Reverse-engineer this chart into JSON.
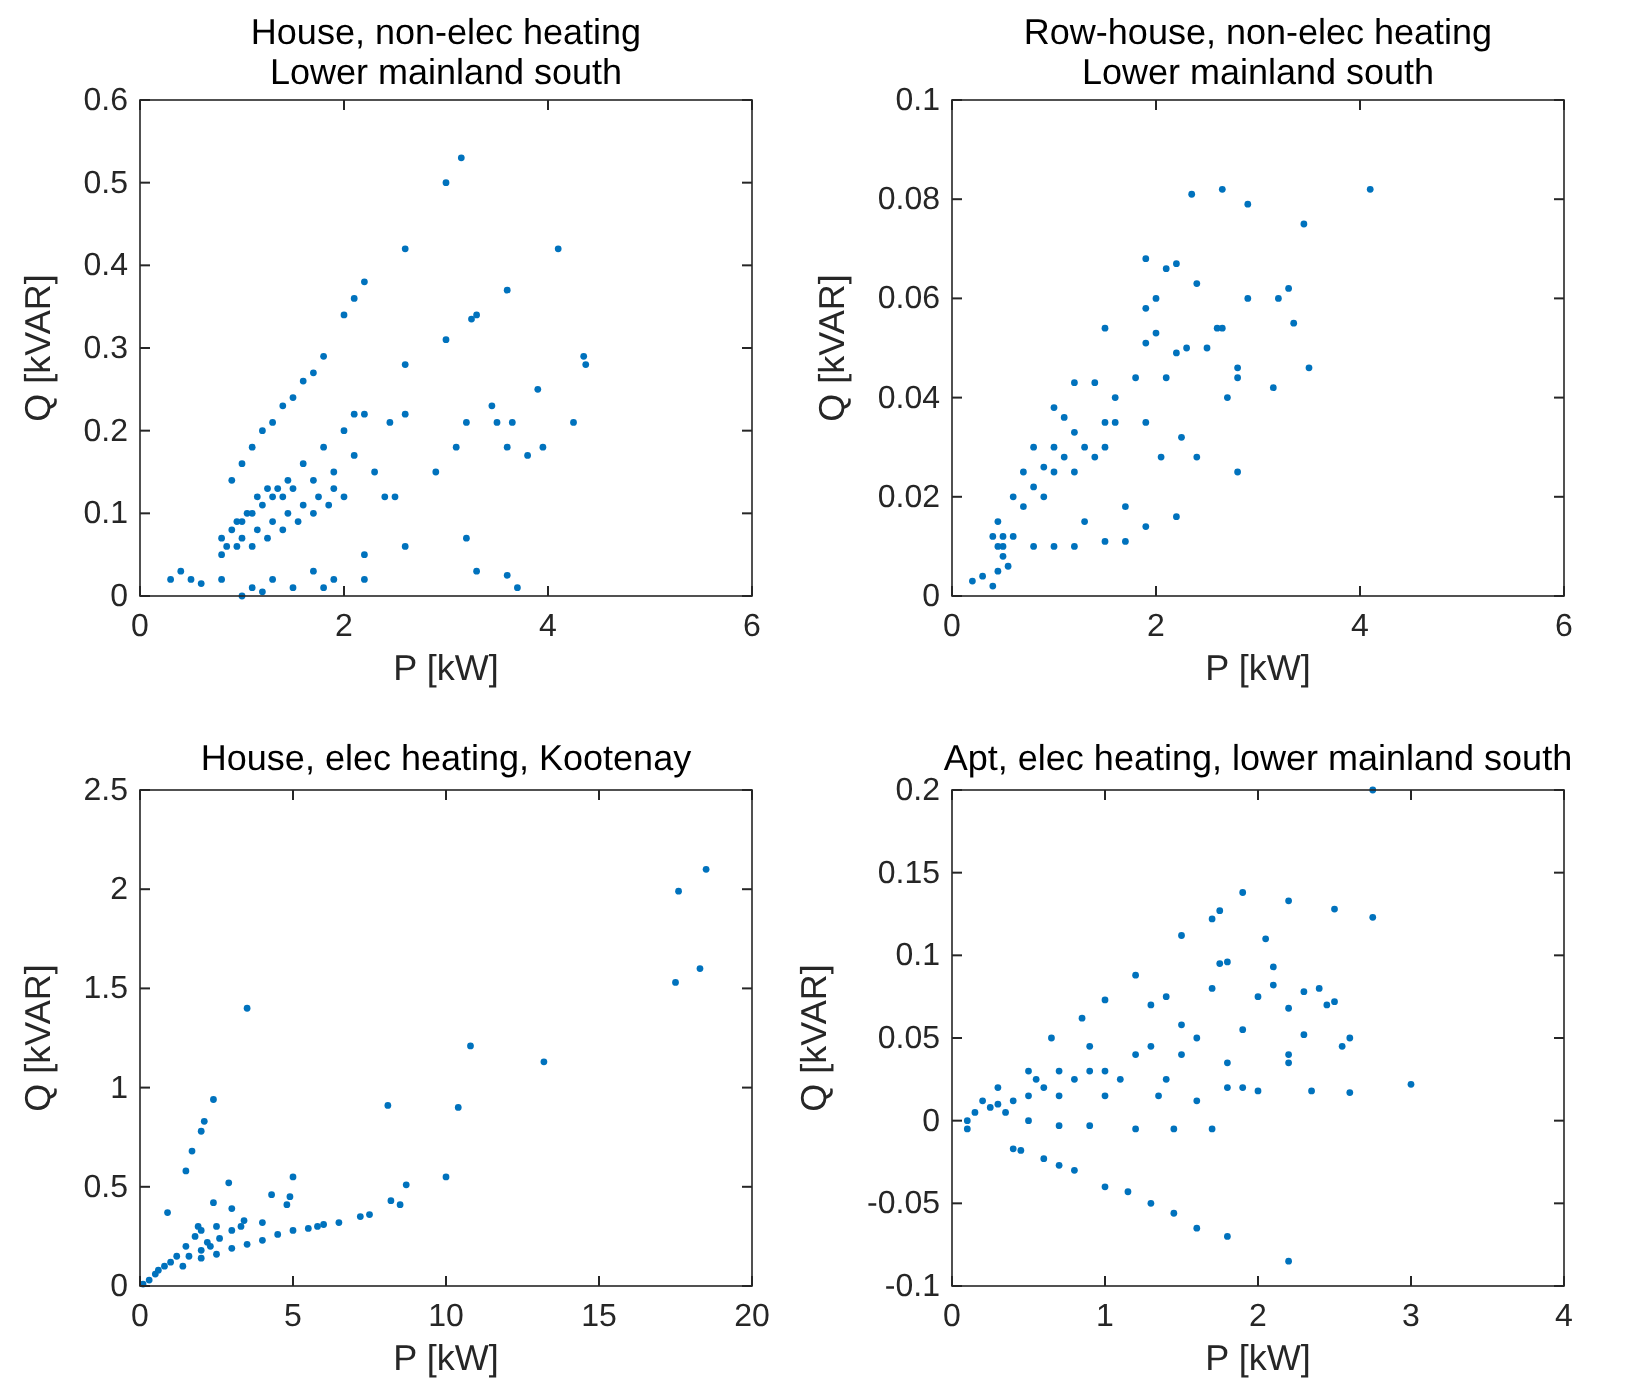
{
  "chart_data": [
    {
      "type": "scatter",
      "title": "House, non-elec heating",
      "subtitle": "Lower mainland south",
      "xlabel": "P [kW]",
      "ylabel": "Q [kVAR]",
      "xlim": [
        0,
        6
      ],
      "ylim": [
        0,
        0.6
      ],
      "xticks": [
        0,
        2,
        4,
        6
      ],
      "yticks": [
        0,
        0.1,
        0.2,
        0.3,
        0.4,
        0.5,
        0.6
      ],
      "marker": "circle",
      "grid": false,
      "series": [
        {
          "color": "#0072bd",
          "x": [
            0.9,
            1.0,
            1.1,
            1.2,
            1.3,
            1.4,
            1.5,
            1.6,
            1.7,
            0.95,
            1.05,
            1.15,
            1.25,
            1.35,
            1.45,
            0.8,
            0.9,
            1.0,
            1.1,
            1.2,
            1.3,
            1.4,
            1.5,
            0.85,
            1.0,
            1.15,
            1.3,
            1.45,
            1.6,
            1.75,
            1.9,
            0.8,
            0.95,
            1.1,
            1.25,
            1.4,
            1.55,
            1.7,
            1.85,
            2.0,
            1.6,
            1.8,
            2.0,
            2.2,
            1.7,
            1.9,
            2.1,
            3.15,
            3.0,
            2.6,
            4.1,
            2.2,
            2.1,
            2.0,
            3.6,
            3.3,
            3.25,
            3.0,
            1.8,
            2.6,
            4.35,
            4.37,
            3.45,
            3.9,
            2.6,
            2.1,
            3.5,
            3.2,
            3.65,
            2.45,
            4.25,
            3.95,
            3.8,
            3.6,
            3.1,
            2.3,
            2.9,
            2.4,
            2.5,
            2.6,
            2.2,
            3.2,
            3.3,
            3.6,
            3.7,
            2.2,
            0.3,
            0.4,
            0.5,
            0.6,
            0.8,
            1.0,
            1.1,
            1.2,
            1.3,
            1.5,
            1.7,
            1.8,
            1.9
          ],
          "values": [
            0.14,
            0.16,
            0.18,
            0.2,
            0.21,
            0.23,
            0.24,
            0.26,
            0.27,
            0.09,
            0.1,
            0.12,
            0.13,
            0.13,
            0.14,
            0.07,
            0.08,
            0.09,
            0.1,
            0.11,
            0.12,
            0.12,
            0.13,
            0.06,
            0.07,
            0.08,
            0.09,
            0.1,
            0.11,
            0.12,
            0.13,
            0.05,
            0.06,
            0.06,
            0.07,
            0.08,
            0.09,
            0.1,
            0.11,
            0.12,
            0.16,
            0.18,
            0.2,
            0.22,
            0.14,
            0.15,
            0.17,
            0.53,
            0.5,
            0.42,
            0.42,
            0.38,
            0.36,
            0.34,
            0.37,
            0.34,
            0.335,
            0.31,
            0.29,
            0.28,
            0.29,
            0.28,
            0.23,
            0.25,
            0.22,
            0.22,
            0.21,
            0.21,
            0.21,
            0.21,
            0.21,
            0.18,
            0.17,
            0.18,
            0.18,
            0.15,
            0.15,
            0.12,
            0.12,
            0.06,
            0.05,
            0.07,
            0.03,
            0.025,
            0.01,
            0.02,
            0.02,
            0.03,
            0.02,
            0.015,
            0.02,
            0.0,
            0.01,
            0.005,
            0.02,
            0.01,
            0.03,
            0.01,
            0.02
          ]
        }
      ]
    },
    {
      "type": "scatter",
      "title": "Row-house, non-elec heating",
      "subtitle": "Lower mainland south",
      "xlabel": "P [kW]",
      "ylabel": "Q [kVAR]",
      "xlim": [
        0,
        6
      ],
      "ylim": [
        0,
        0.1
      ],
      "xticks": [
        0,
        2,
        4,
        6
      ],
      "yticks": [
        0,
        0.02,
        0.04,
        0.06,
        0.08,
        0.1
      ],
      "marker": "circle",
      "grid": false,
      "series": [
        {
          "color": "#0072bd",
          "x": [
            2.35,
            2.65,
            2.9,
            3.45,
            4.1,
            1.9,
            2.1,
            2.2,
            2.0,
            2.4,
            2.9,
            3.2,
            3.3,
            3.35,
            3.5,
            3.15,
            2.8,
            1.5,
            1.9,
            2.6,
            2.65,
            1.9,
            2.3,
            2.0,
            2.2,
            2.5,
            2.7,
            2.8,
            2.1,
            1.8,
            1.2,
            1.4,
            1.6,
            1.0,
            1.1,
            1.5,
            1.9,
            2.25,
            2.05,
            2.4,
            2.8,
            2.2,
            1.9,
            1.3,
            1.5,
            1.7,
            1.0,
            1.2,
            0.8,
            0.6,
            0.5,
            0.45,
            0.4,
            0.2,
            0.3,
            0.45,
            0.5,
            0.6,
            0.7,
            0.8,
            0.9,
            1.0,
            1.1,
            1.2,
            1.3,
            1.4,
            1.5,
            1.6,
            0.7,
            0.8,
            0.9,
            1.0,
            1.2,
            0.5,
            0.45,
            0.55,
            1.7,
            0.4
          ],
          "values": [
            0.081,
            0.082,
            0.079,
            0.075,
            0.082,
            0.068,
            0.066,
            0.067,
            0.06,
            0.063,
            0.06,
            0.06,
            0.062,
            0.055,
            0.046,
            0.042,
            0.046,
            0.054,
            0.058,
            0.054,
            0.054,
            0.051,
            0.05,
            0.053,
            0.049,
            0.05,
            0.04,
            0.044,
            0.044,
            0.044,
            0.043,
            0.043,
            0.04,
            0.038,
            0.036,
            0.035,
            0.035,
            0.032,
            0.028,
            0.028,
            0.025,
            0.016,
            0.014,
            0.015,
            0.011,
            0.011,
            0.01,
            0.01,
            0.01,
            0.012,
            0.008,
            0.005,
            0.002,
            0.003,
            0.004,
            0.015,
            0.012,
            0.02,
            0.018,
            0.022,
            0.02,
            0.025,
            0.028,
            0.025,
            0.03,
            0.028,
            0.03,
            0.035,
            0.025,
            0.03,
            0.026,
            0.03,
            0.033,
            0.01,
            0.01,
            0.006,
            0.018,
            0.012
          ]
        }
      ]
    },
    {
      "type": "scatter",
      "title": "House, elec heating, Kootenay",
      "xlabel": "P [kW]",
      "ylabel": "Q [kVAR]",
      "xlim": [
        0,
        20
      ],
      "ylim": [
        0,
        2.5
      ],
      "xticks": [
        0,
        5,
        10,
        15,
        20
      ],
      "yticks": [
        0,
        0.5,
        1,
        1.5,
        2,
        2.5
      ],
      "marker": "circle",
      "grid": false,
      "series": [
        {
          "color": "#0072bd",
          "x": [
            17.6,
            17.5,
            18.5,
            18.3,
            3.5,
            2.4,
            2.1,
            2.0,
            1.7,
            1.5,
            8.1,
            10.4,
            10.8,
            13.2,
            10.0,
            8.7,
            8.2,
            8.5,
            2.9,
            4.3,
            4.8,
            5.0,
            4.9,
            2.4,
            3.0,
            0.9,
            3.4,
            7.5,
            7.2,
            6.5,
            5.8,
            5.0,
            4.5,
            4.0,
            3.5,
            3.0,
            2.5,
            2.0,
            6.0,
            5.5,
            2.0,
            1.8,
            2.2,
            2.5,
            1.5,
            1.2,
            1.0,
            0.8,
            0.5,
            0.3,
            0.1,
            2.0,
            2.3,
            1.9,
            2.6,
            3.0,
            3.3,
            4.0,
            0.6,
            1.4,
            1.6
          ],
          "values": [
            1.99,
            1.53,
            2.1,
            1.6,
            1.4,
            0.94,
            0.83,
            0.78,
            0.68,
            0.58,
            0.91,
            0.9,
            1.21,
            1.13,
            0.55,
            0.51,
            0.43,
            0.41,
            0.52,
            0.46,
            0.41,
            0.55,
            0.45,
            0.42,
            0.39,
            0.37,
            0.33,
            0.36,
            0.35,
            0.32,
            0.3,
            0.28,
            0.26,
            0.23,
            0.21,
            0.19,
            0.16,
            0.14,
            0.31,
            0.29,
            0.28,
            0.25,
            0.22,
            0.3,
            0.2,
            0.15,
            0.12,
            0.1,
            0.06,
            0.03,
            0.01,
            0.18,
            0.2,
            0.3,
            0.24,
            0.28,
            0.3,
            0.32,
            0.08,
            0.1,
            0.15
          ]
        }
      ]
    },
    {
      "type": "scatter",
      "title": "Apt, elec heating, lower mainland south",
      "xlabel": "P [kW]",
      "ylabel": "Q [kVAR]",
      "xlim": [
        0,
        4
      ],
      "ylim": [
        -0.1,
        0.2
      ],
      "xticks": [
        0,
        1,
        2,
        3,
        4
      ],
      "yticks": [
        -0.1,
        -0.05,
        0,
        0.05,
        0.1,
        0.15,
        0.2
      ],
      "marker": "circle",
      "grid": false,
      "series": [
        {
          "color": "#0072bd",
          "x": [
            2.75,
            1.9,
            2.2,
            2.5,
            2.75,
            1.75,
            1.7,
            1.5,
            2.05,
            1.8,
            1.75,
            2.1,
            2.1,
            2.4,
            2.3,
            1.2,
            1.0,
            1.4,
            1.7,
            2.0,
            2.45,
            2.5,
            2.2,
            1.3,
            0.85,
            1.5,
            1.9,
            2.3,
            2.6,
            0.65,
            0.9,
            1.2,
            1.5,
            1.8,
            2.2,
            2.55,
            2.2,
            0.5,
            0.7,
            0.9,
            1.1,
            1.4,
            1.9,
            2.35,
            1.8,
            0.3,
            0.5,
            0.7,
            1.0,
            1.35,
            1.6,
            2.0,
            0.2,
            0.15,
            0.1,
            0.25,
            0.35,
            0.1,
            0.5,
            0.7,
            0.9,
            1.2,
            1.45,
            1.7,
            3.0,
            2.6,
            0.4,
            0.45,
            0.6,
            0.7,
            0.8,
            1.0,
            1.15,
            1.3,
            1.45,
            1.6,
            1.8,
            2.2,
            0.3,
            0.4,
            0.6,
            0.8,
            1.0,
            1.3,
            1.6,
            0.55
          ],
          "values": [
            0.2,
            0.138,
            0.133,
            0.128,
            0.123,
            0.127,
            0.122,
            0.112,
            0.11,
            0.096,
            0.095,
            0.093,
            0.082,
            0.08,
            0.078,
            0.088,
            0.073,
            0.075,
            0.08,
            0.075,
            0.07,
            0.072,
            0.068,
            0.07,
            0.062,
            0.058,
            0.055,
            0.052,
            0.05,
            0.05,
            0.045,
            0.04,
            0.04,
            0.035,
            0.04,
            0.045,
            0.035,
            0.03,
            0.03,
            0.03,
            0.025,
            0.025,
            0.02,
            0.018,
            0.02,
            0.02,
            0.015,
            0.015,
            0.015,
            0.015,
            0.012,
            0.018,
            0.012,
            0.005,
            0.0,
            0.008,
            0.005,
            -0.005,
            0.0,
            -0.003,
            -0.003,
            -0.005,
            -0.005,
            -0.005,
            0.022,
            0.017,
            -0.017,
            -0.018,
            -0.023,
            -0.027,
            -0.03,
            -0.04,
            -0.043,
            -0.05,
            -0.056,
            -0.065,
            -0.07,
            -0.085,
            0.01,
            0.012,
            0.02,
            0.025,
            0.03,
            0.045,
            0.05,
            0.025
          ]
        }
      ]
    }
  ]
}
